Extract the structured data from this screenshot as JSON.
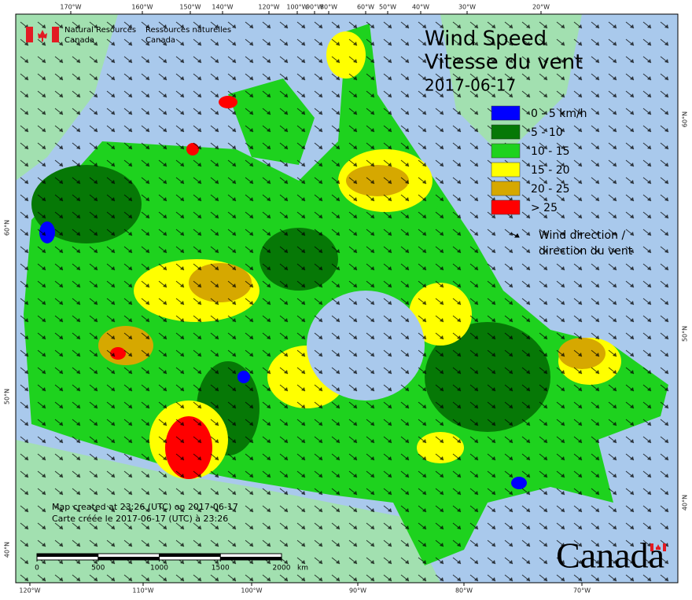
{
  "agency": {
    "en": [
      "Natural Resources",
      "Canada"
    ],
    "fr": [
      "Ressources naturelles",
      "Canada"
    ]
  },
  "title": [
    "Wind Speed",
    "Vitesse du vent"
  ],
  "date": "2017-06-17",
  "legend": [
    {
      "label": "0 - 5 km/h",
      "color": "#0000ff"
    },
    {
      "label": "5 - 10",
      "color": "#067806"
    },
    {
      "label": "10 - 15",
      "color": "#1ed21e"
    },
    {
      "label": "15 - 20",
      "color": "#ffff00"
    },
    {
      "label": "20 - 25",
      "color": "#d6a800"
    },
    {
      "label": "> 25",
      "color": "#ff0000"
    }
  ],
  "wind_legend": [
    "Wind direction /",
    "direction du vent"
  ],
  "credits": [
    "Map created at 23:26 (UTC) on 2017-06-17",
    "Carte créée le 2017-06-17 (UTC) à 23:26"
  ],
  "scale_bar": {
    "ticks": [
      0,
      500,
      1000,
      1500,
      2000
    ],
    "unit": "km"
  },
  "top_longitudes": [
    "170°W",
    "160°W",
    "150°W",
    "140°W",
    "120°W",
    "100°W",
    "90°W",
    "80°W",
    "60°W",
    "50°W",
    "40°W",
    "30°W",
    "20°W"
  ],
  "bottom_longitudes": [
    "120°W",
    "110°W",
    "100°W",
    "90°W",
    "80°W",
    "70°W"
  ],
  "left_latitudes": [
    "60°N",
    "50°N",
    "40°N"
  ],
  "right_latitudes": [
    "60°N",
    "50°N",
    "40°N"
  ],
  "wordmark": "Canada"
}
